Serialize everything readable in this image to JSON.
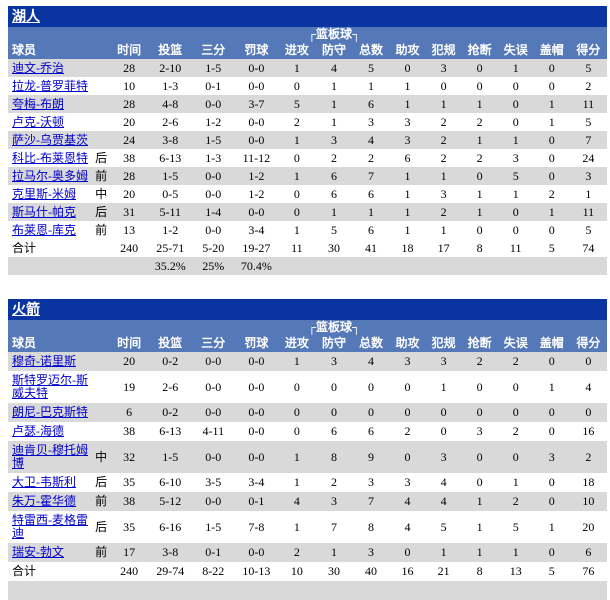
{
  "colors": {
    "title_bar_bg": "#0A34A0",
    "header_bg": "#5478B8",
    "alt_row_bg": "#D9D9D9",
    "player_link_color": "#0000CC",
    "team_link_color": "#FFFFFF"
  },
  "table_header": {
    "player_column_label": "球员",
    "rebounds_group_label": "┌篮板球┐",
    "stat_columns": [
      "时间",
      "投篮",
      "三分",
      "罚球",
      "进攻",
      "防守",
      "总数",
      "助攻",
      "犯规",
      "抢断",
      "失误",
      "盖帽",
      "得分"
    ]
  },
  "teams": [
    {
      "name": "湖人",
      "players": [
        {
          "name": "迪文-乔治",
          "pos": "",
          "stats": [
            "28",
            "2-10",
            "1-5",
            "0-0",
            "1",
            "4",
            "5",
            "0",
            "3",
            "0",
            "1",
            "0",
            "5"
          ]
        },
        {
          "name": "拉龙-普罗菲特",
          "pos": "",
          "stats": [
            "10",
            "1-3",
            "0-1",
            "0-0",
            "0",
            "1",
            "1",
            "1",
            "0",
            "0",
            "0",
            "0",
            "2"
          ]
        },
        {
          "name": "夸梅-布朗",
          "pos": "",
          "stats": [
            "28",
            "4-8",
            "0-0",
            "3-7",
            "5",
            "1",
            "6",
            "1",
            "1",
            "1",
            "0",
            "1",
            "11"
          ]
        },
        {
          "name": "卢克-沃顿",
          "pos": "",
          "stats": [
            "20",
            "2-6",
            "1-2",
            "0-0",
            "2",
            "1",
            "3",
            "3",
            "2",
            "2",
            "0",
            "1",
            "5"
          ]
        },
        {
          "name": "萨沙-乌贾基茨",
          "pos": "",
          "stats": [
            "24",
            "3-8",
            "1-5",
            "0-0",
            "1",
            "3",
            "4",
            "3",
            "2",
            "1",
            "1",
            "0",
            "7"
          ]
        },
        {
          "name": "科比-布莱恩特",
          "pos": "后",
          "stats": [
            "38",
            "6-13",
            "1-3",
            "11-12",
            "0",
            "2",
            "2",
            "6",
            "2",
            "2",
            "3",
            "0",
            "24"
          ]
        },
        {
          "name": "拉马尔-奥多姆",
          "pos": "前",
          "stats": [
            "28",
            "1-5",
            "0-0",
            "1-2",
            "1",
            "6",
            "7",
            "1",
            "1",
            "0",
            "5",
            "0",
            "3"
          ]
        },
        {
          "name": "克里斯-米姆",
          "pos": "中",
          "stats": [
            "20",
            "0-5",
            "0-0",
            "1-2",
            "0",
            "6",
            "6",
            "1",
            "3",
            "1",
            "1",
            "2",
            "1"
          ]
        },
        {
          "name": "斯马什-帕克",
          "pos": "后",
          "stats": [
            "31",
            "5-11",
            "1-4",
            "0-0",
            "0",
            "1",
            "1",
            "1",
            "2",
            "1",
            "0",
            "1",
            "11"
          ]
        },
        {
          "name": "布莱恩-库克",
          "pos": "前",
          "stats": [
            "13",
            "1-2",
            "0-0",
            "3-4",
            "1",
            "5",
            "6",
            "1",
            "1",
            "0",
            "0",
            "0",
            "5"
          ]
        }
      ],
      "totals": {
        "label": "合计",
        "stats": [
          "240",
          "25-71",
          "5-20",
          "19-27",
          "11",
          "30",
          "41",
          "18",
          "17",
          "8",
          "11",
          "5",
          "74"
        ]
      },
      "percentages": [
        "",
        "35.2%",
        "25%",
        "70.4%",
        "",
        "",
        "",
        "",
        "",
        "",
        "",
        "",
        ""
      ]
    },
    {
      "name": "火箭",
      "players": [
        {
          "name": "穆奇-诺里斯",
          "pos": "",
          "stats": [
            "20",
            "0-2",
            "0-0",
            "0-0",
            "1",
            "3",
            "4",
            "3",
            "3",
            "2",
            "2",
            "0",
            "0"
          ]
        },
        {
          "name": "斯特罗迈尔-斯威夫特",
          "pos": "",
          "stats": [
            "19",
            "2-6",
            "0-0",
            "0-0",
            "0",
            "0",
            "0",
            "0",
            "1",
            "0",
            "0",
            "1",
            "4"
          ]
        },
        {
          "name": "朗尼-巴克斯特",
          "pos": "",
          "stats": [
            "6",
            "0-2",
            "0-0",
            "0-0",
            "0",
            "0",
            "0",
            "0",
            "0",
            "0",
            "0",
            "0",
            "0"
          ]
        },
        {
          "name": "卢瑟-海德",
          "pos": "",
          "stats": [
            "38",
            "6-13",
            "4-11",
            "0-0",
            "0",
            "6",
            "6",
            "2",
            "0",
            "3",
            "2",
            "0",
            "16"
          ]
        },
        {
          "name": "迪肯贝-穆托姆博",
          "pos": "中",
          "stats": [
            "32",
            "1-5",
            "0-0",
            "0-0",
            "1",
            "8",
            "9",
            "0",
            "3",
            "0",
            "0",
            "3",
            "2"
          ]
        },
        {
          "name": "大卫-韦斯利",
          "pos": "后",
          "stats": [
            "35",
            "6-10",
            "3-5",
            "3-4",
            "1",
            "2",
            "3",
            "3",
            "4",
            "0",
            "1",
            "0",
            "18"
          ]
        },
        {
          "name": "朱万-霍华德",
          "pos": "前",
          "stats": [
            "38",
            "5-12",
            "0-0",
            "0-1",
            "4",
            "3",
            "7",
            "4",
            "4",
            "1",
            "2",
            "0",
            "10"
          ]
        },
        {
          "name": "特雷西-麦格雷迪",
          "pos": "后",
          "stats": [
            "35",
            "6-16",
            "1-5",
            "7-8",
            "1",
            "7",
            "8",
            "4",
            "5",
            "1",
            "5",
            "1",
            "20"
          ]
        },
        {
          "name": "瑞安-勃文",
          "pos": "前",
          "stats": [
            "17",
            "3-8",
            "0-1",
            "0-0",
            "2",
            "1",
            "3",
            "0",
            "1",
            "1",
            "1",
            "0",
            "6"
          ]
        }
      ],
      "totals": {
        "label": "合计",
        "stats": [
          "240",
          "29-74",
          "8-22",
          "10-13",
          "10",
          "30",
          "40",
          "16",
          "21",
          "8",
          "13",
          "5",
          "76"
        ]
      },
      "percentages": [
        "",
        "",
        "",
        "",
        "",
        "",
        "",
        "",
        "",
        "",
        "",
        "",
        ""
      ]
    }
  ]
}
